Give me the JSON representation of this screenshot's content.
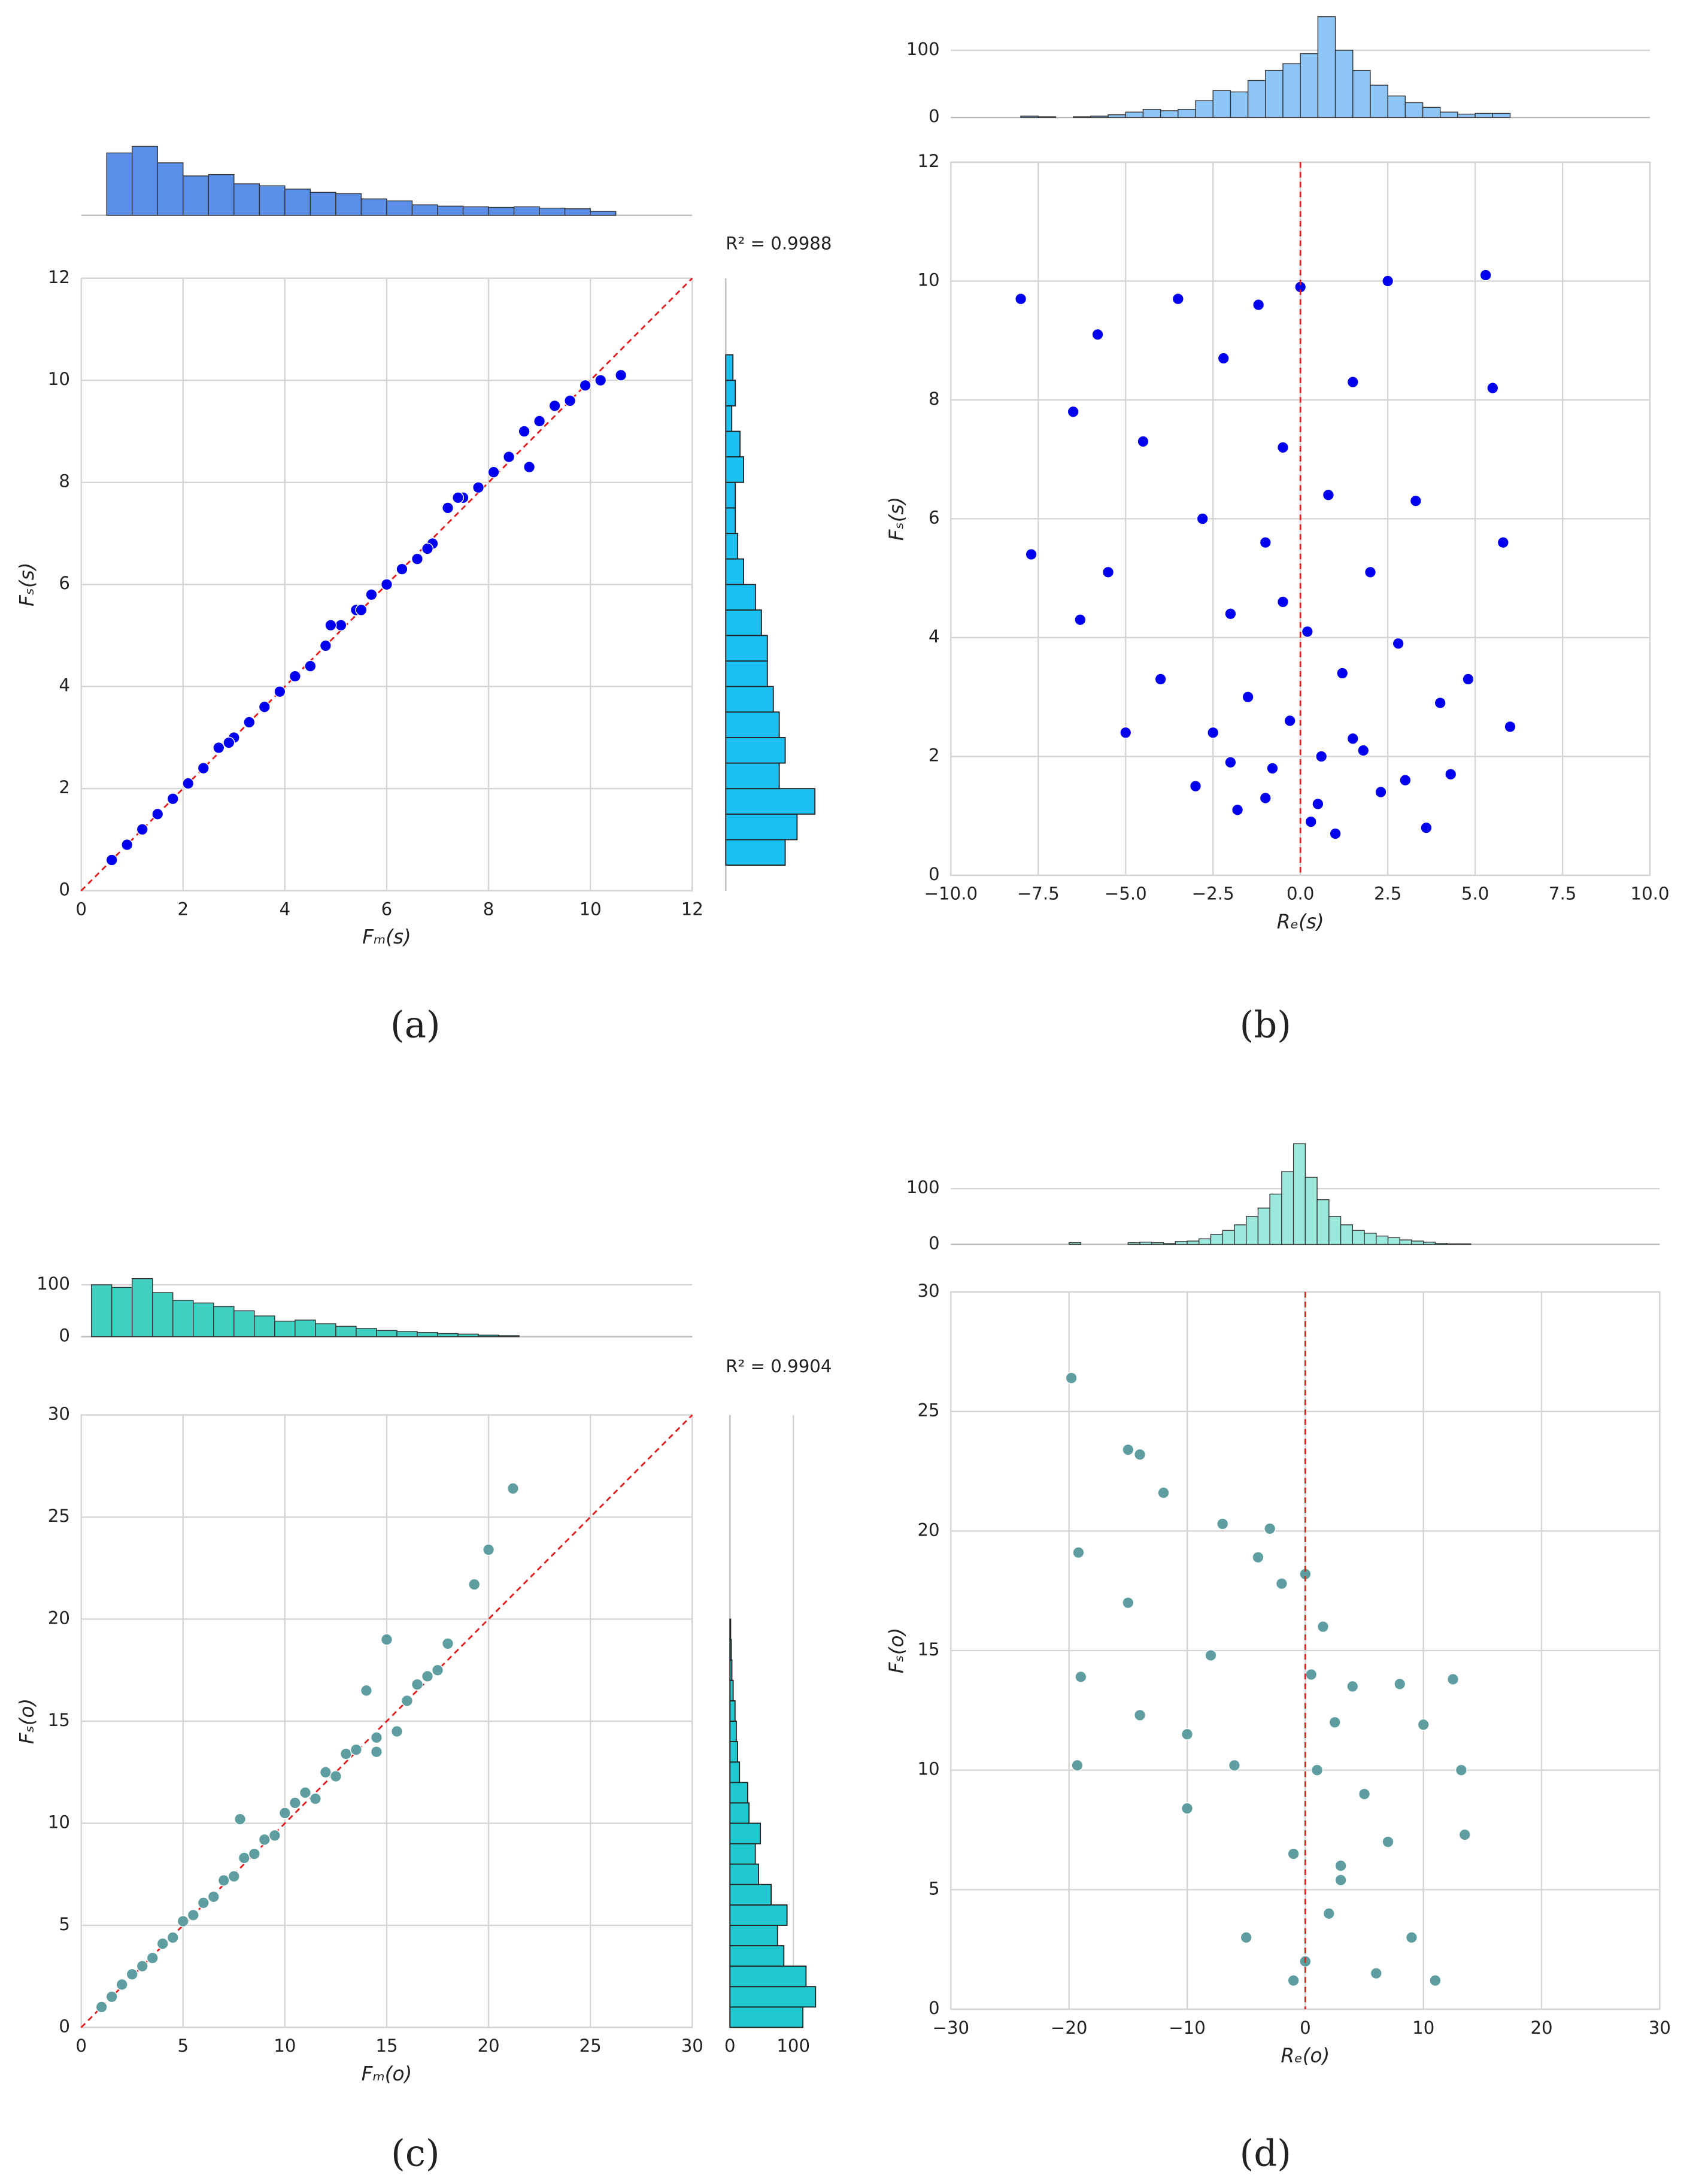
{
  "chart_data": [
    {
      "type": "scatter",
      "label": "(a)",
      "xlabel": "Fₘ(s)",
      "ylabel": "Fₛ(s)",
      "annotation": "R² = 0.9988",
      "color": "#0000ee",
      "diagonal": true,
      "grid": true,
      "xlim": [
        0,
        12
      ],
      "ylim": [
        0,
        12
      ],
      "xticks": [
        0,
        2,
        4,
        6,
        8,
        10,
        12
      ],
      "yticks": [
        0,
        2,
        4,
        6,
        8,
        10,
        12
      ],
      "x": [
        0.6,
        0.9,
        1.2,
        1.5,
        1.8,
        2.1,
        2.4,
        2.7,
        3.0,
        3.3,
        3.6,
        3.9,
        4.2,
        4.5,
        4.8,
        5.1,
        5.4,
        5.7,
        6.0,
        6.3,
        6.6,
        6.9,
        7.2,
        7.5,
        7.8,
        8.1,
        8.4,
        8.7,
        9.0,
        9.3,
        9.6,
        9.9,
        10.2,
        10.6,
        4.9,
        5.5,
        7.4,
        8.8,
        2.9,
        6.8
      ],
      "y": [
        0.6,
        0.9,
        1.2,
        1.5,
        1.8,
        2.1,
        2.4,
        2.8,
        3.0,
        3.3,
        3.6,
        3.9,
        4.2,
        4.4,
        4.8,
        5.2,
        5.5,
        5.8,
        6.0,
        6.3,
        6.5,
        6.8,
        7.5,
        7.7,
        7.9,
        8.2,
        8.5,
        9.0,
        9.2,
        9.5,
        9.6,
        9.9,
        10.0,
        10.1,
        5.2,
        5.5,
        7.7,
        8.3,
        2.9,
        6.7
      ],
      "top_hist": {
        "color": "#5b8ee6",
        "ylim": [
          0,
          115
        ],
        "bins": [
          0.5,
          1,
          1.5,
          2,
          2.5,
          3,
          3.5,
          4,
          4.5,
          5,
          5.5,
          6,
          6.5,
          7,
          7.5,
          8,
          8.5,
          9,
          9.5,
          10,
          10.5
        ],
        "counts": [
          95,
          105,
          80,
          60,
          62,
          48,
          45,
          40,
          35,
          33,
          25,
          22,
          16,
          14,
          13,
          12,
          13,
          11,
          10,
          6
        ]
      },
      "right_hist": {
        "color": "#1cc0f2",
        "xlim": [
          0,
          80
        ],
        "bins": [
          0.5,
          1,
          1.5,
          2,
          2.5,
          3,
          3.5,
          4,
          4.5,
          5,
          5.5,
          6,
          6.5,
          7,
          7.5,
          8,
          8.5,
          9,
          9.5,
          10,
          10.5
        ],
        "counts": [
          50,
          60,
          75,
          45,
          50,
          45,
          40,
          35,
          35,
          30,
          25,
          15,
          10,
          8,
          8,
          15,
          12,
          5,
          8,
          6
        ]
      }
    },
    {
      "type": "scatter",
      "label": "(b)",
      "xlabel": "Rₑ(s)",
      "ylabel": "Fₛ(s)",
      "color": "#0000ee",
      "vline": 0,
      "grid": true,
      "xlim": [
        -10,
        10
      ],
      "ylim": [
        0,
        12
      ],
      "xticks": [
        {
          "value": -10,
          "label": "−10.0"
        },
        {
          "value": -7.5,
          "label": "−7.5"
        },
        {
          "value": -5,
          "label": "−5.0"
        },
        {
          "value": -2.5,
          "label": "−2.5"
        },
        {
          "value": 0,
          "label": "0.0"
        },
        2.5,
        {
          "value": 5,
          "label": "5.0"
        },
        7.5,
        {
          "value": 10,
          "label": "10.0"
        }
      ],
      "yticks": [
        0,
        2,
        4,
        6,
        8,
        10,
        12
      ],
      "x": [
        -8,
        -7.7,
        -6.5,
        -6.3,
        -5.8,
        -5.5,
        -5,
        -4.5,
        -4,
        -3.5,
        -3,
        -2.8,
        -2.5,
        -2.2,
        -2,
        -1.8,
        -1.5,
        -1.2,
        -1,
        -0.8,
        -0.5,
        -0.3,
        0,
        0.2,
        0.5,
        0.8,
        1,
        1.2,
        1.5,
        1.8,
        2,
        2.3,
        2.5,
        2.8,
        3,
        3.3,
        3.6,
        4,
        4.3,
        4.8,
        5.3,
        5.5,
        5.8,
        6,
        -1,
        0.3,
        -2,
        1.5,
        -0.5,
        0.6
      ],
      "y": [
        9.7,
        5.4,
        7.8,
        4.3,
        9.1,
        5.1,
        2.4,
        7.3,
        3.3,
        9.7,
        1.5,
        6,
        2.4,
        8.7,
        4.4,
        1.1,
        3,
        9.6,
        5.6,
        1.8,
        7.2,
        2.6,
        9.9,
        4.1,
        1.2,
        6.4,
        0.7,
        3.4,
        8.3,
        2.1,
        5.1,
        1.4,
        10,
        3.9,
        1.6,
        6.3,
        0.8,
        2.9,
        1.7,
        3.3,
        10.1,
        8.2,
        5.6,
        2.5,
        1.3,
        0.9,
        1.9,
        2.3,
        4.6,
        2.0
      ],
      "top_hist": {
        "color": "#8ec5f7",
        "ylim": [
          0,
          154
        ],
        "yticks": [
          0,
          100
        ],
        "bins": [
          -8,
          -7.5,
          -7,
          -6.5,
          -6,
          -5.5,
          -5,
          -4.5,
          -4,
          -3.5,
          -3,
          -2.5,
          -2,
          -1.5,
          -1,
          -0.5,
          0,
          0.5,
          1,
          1.5,
          2,
          2.5,
          3,
          3.5,
          4,
          4.5,
          5,
          5.5,
          6
        ],
        "counts": [
          2,
          1,
          0,
          1,
          2,
          4,
          8,
          12,
          10,
          12,
          25,
          40,
          38,
          55,
          70,
          80,
          95,
          150,
          100,
          70,
          48,
          32,
          22,
          15,
          8,
          5,
          6,
          6
        ]
      }
    },
    {
      "type": "scatter",
      "label": "(c)",
      "xlabel": "Fₘ(o)",
      "ylabel": "Fₛ(o)",
      "annotation": "R² = 0.9904",
      "color": "#5f9ea0",
      "diagonal": true,
      "grid": true,
      "xlim": [
        0,
        30
      ],
      "ylim": [
        0,
        30
      ],
      "xticks": [
        0,
        5,
        10,
        15,
        20,
        25,
        30
      ],
      "yticks": [
        0,
        5,
        10,
        15,
        20,
        25,
        30
      ],
      "x": [
        1,
        1.5,
        2,
        2.5,
        3,
        3.5,
        4,
        4.5,
        5,
        5.5,
        6,
        6.5,
        7,
        7.5,
        8,
        8.5,
        9,
        9.5,
        10,
        10.5,
        11,
        11.5,
        12,
        12.5,
        13,
        13.5,
        14,
        14.5,
        15,
        15.5,
        16,
        16.5,
        17,
        17.5,
        18,
        19.3,
        20,
        21.2,
        14.5,
        7.8
      ],
      "y": [
        1,
        1.5,
        2.1,
        2.6,
        3,
        3.4,
        4.1,
        4.4,
        5.2,
        5.5,
        6.1,
        6.4,
        7.2,
        7.4,
        8.3,
        8.5,
        9.2,
        9.4,
        10.5,
        11,
        11.5,
        11.2,
        12.5,
        12.3,
        13.4,
        13.6,
        16.5,
        14.2,
        19,
        14.5,
        16,
        16.8,
        17.2,
        17.5,
        18.8,
        21.7,
        23.4,
        26.4,
        13.5,
        10.2
      ],
      "top_hist": {
        "color": "#40cfc0",
        "ylim": [
          0,
          124
        ],
        "yticks": [
          0,
          100
        ],
        "bins": [
          0.5,
          1.5,
          2.5,
          3.5,
          4.5,
          5.5,
          6.5,
          7.5,
          8.5,
          9.5,
          10.5,
          11.5,
          12.5,
          13.5,
          14.5,
          15.5,
          16.5,
          17.5,
          18.5,
          19.5,
          20.5,
          21.5
        ],
        "counts": [
          100,
          95,
          112,
          85,
          70,
          65,
          58,
          50,
          40,
          30,
          32,
          25,
          20,
          16,
          12,
          10,
          8,
          6,
          5,
          3,
          2
        ]
      },
      "right_hist": {
        "color": "#20c9d0",
        "xlim": [
          0,
          150
        ],
        "xticks": [
          0,
          100
        ],
        "bins": [
          0,
          1,
          2,
          3,
          4,
          5,
          6,
          7,
          8,
          9,
          10,
          11,
          12,
          13,
          14,
          15,
          16,
          17,
          18,
          19,
          20
        ],
        "counts": [
          115,
          135,
          120,
          85,
          75,
          90,
          65,
          45,
          40,
          48,
          30,
          28,
          15,
          12,
          10,
          8,
          5,
          3,
          2,
          1
        ]
      }
    },
    {
      "type": "scatter",
      "label": "(d)",
      "xlabel": "Rₑ(o)",
      "ylabel": "Fₛ(o)",
      "color": "#5f9ea0",
      "vline": 0,
      "grid": true,
      "xlim": [
        -30,
        30
      ],
      "ylim": [
        0,
        30
      ],
      "xticks": [
        {
          "value": -30,
          "label": "−30"
        },
        {
          "value": -20,
          "label": "−20"
        },
        {
          "value": -10,
          "label": "−10"
        },
        0,
        10,
        20,
        30
      ],
      "yticks": [
        0,
        5,
        10,
        15,
        20,
        25,
        30
      ],
      "x": [
        -19.8,
        -19.2,
        -19,
        -19.3,
        -15,
        -14,
        -15,
        -14,
        -12,
        -10,
        -10,
        -8,
        -7,
        -6,
        -4,
        -3,
        -2,
        -1,
        0,
        0,
        0.5,
        1,
        1.5,
        2,
        2.5,
        3,
        4,
        5,
        6,
        7,
        8,
        9,
        10,
        11,
        12.5,
        13.2,
        13.5,
        -5,
        -1,
        3
      ],
      "y": [
        26.4,
        19.1,
        13.9,
        10.2,
        23.4,
        23.2,
        17,
        12.3,
        21.6,
        11.5,
        8.4,
        14.8,
        20.3,
        10.2,
        18.9,
        20.1,
        17.8,
        6.5,
        18.2,
        2,
        14,
        10,
        16,
        4,
        12,
        6,
        13.5,
        9,
        1.5,
        7,
        13.6,
        3,
        11.9,
        1.2,
        13.8,
        10,
        7.3,
        3,
        1.2,
        5.4
      ],
      "top_hist": {
        "color": "#9be9dd",
        "ylim": [
          0,
          190
        ],
        "yticks": [
          0,
          100
        ],
        "bins": [
          -20,
          -19,
          -18,
          -17,
          -16,
          -15,
          -14,
          -13,
          -12,
          -11,
          -10,
          -9,
          -8,
          -7,
          -6,
          -5,
          -4,
          -3,
          -2,
          -1,
          0,
          1,
          2,
          3,
          4,
          5,
          6,
          7,
          8,
          9,
          10,
          11,
          12,
          13,
          14
        ],
        "counts": [
          3,
          0,
          0,
          0,
          0,
          3,
          4,
          3,
          2,
          5,
          6,
          10,
          18,
          25,
          35,
          50,
          65,
          90,
          130,
          180,
          120,
          80,
          50,
          35,
          25,
          20,
          15,
          12,
          8,
          6,
          4,
          2,
          1,
          1
        ]
      }
    }
  ]
}
